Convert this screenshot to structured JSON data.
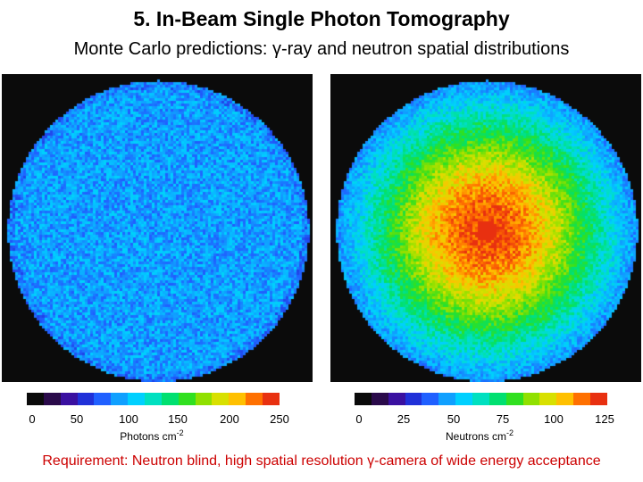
{
  "title": "5. In-Beam Single Photon Tomography",
  "subtitle": "Monte Carlo predictions: γ-ray and neutron spatial distributions",
  "left_map": {
    "colorbar_ticks": [
      "0",
      "50",
      "100",
      "150",
      "200",
      "250"
    ],
    "unit_text": "Photons cm",
    "unit_exponent": "-2"
  },
  "right_map": {
    "colorbar_ticks": [
      "0",
      "25",
      "50",
      "75",
      "100",
      "125"
    ],
    "unit_text": "Neutrons cm",
    "unit_exponent": "-2"
  },
  "colormap": [
    "#0a0a0a",
    "#2a0a4a",
    "#3a10a0",
    "#2030d8",
    "#2060ff",
    "#10a0ff",
    "#00d0ff",
    "#00e0c0",
    "#00e070",
    "#30e020",
    "#90e000",
    "#d8e000",
    "#ffc000",
    "#ff7000",
    "#e83010"
  ],
  "requirement": "Requirement: Neutron blind, high spatial resolution γ-camera of wide energy acceptance"
}
